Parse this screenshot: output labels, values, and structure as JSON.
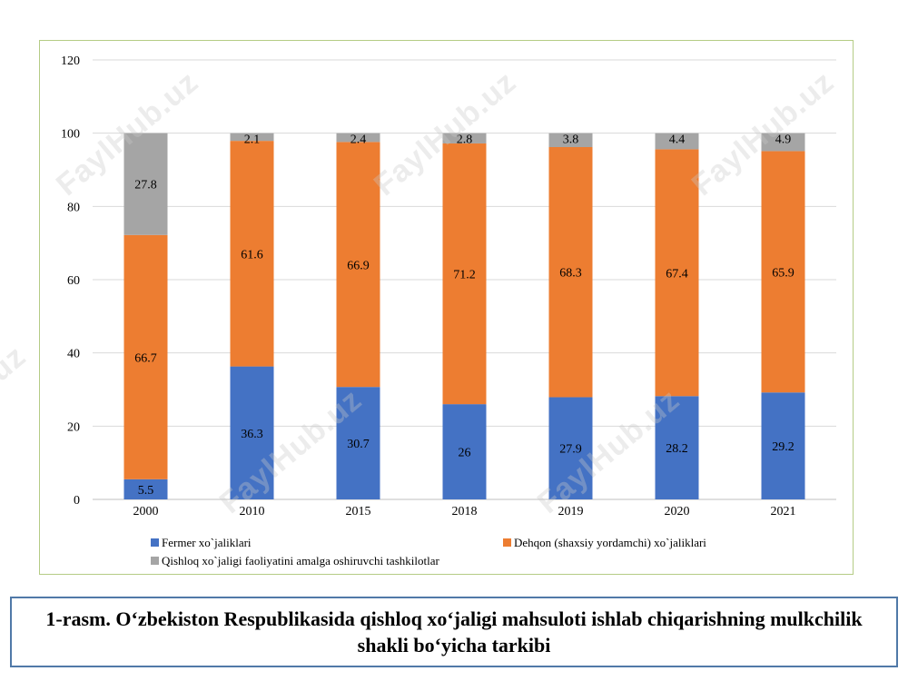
{
  "chart_data": {
    "type": "bar",
    "stacked": true,
    "categories": [
      "2000",
      "2010",
      "2015",
      "2018",
      "2019",
      "2020",
      "2021"
    ],
    "series": [
      {
        "name": "Fermer xo`jaliklari",
        "color": "#4472c4",
        "values": [
          5.5,
          36.3,
          30.7,
          26,
          27.9,
          28.2,
          29.2
        ]
      },
      {
        "name": "Dehqon (shaxsiy yordamchi) xo`jaliklari",
        "color": "#ed7d31",
        "values": [
          66.7,
          61.6,
          66.9,
          71.2,
          68.3,
          67.4,
          65.9
        ]
      },
      {
        "name": "Qishloq xo`jaligi faoliyatini amalga oshiruvchi tashkilotlar",
        "color": "#a5a5a5",
        "values": [
          27.8,
          2.1,
          2.4,
          2.8,
          3.8,
          4.4,
          4.9
        ]
      }
    ],
    "data_labels": [
      [
        "5.5",
        "36.3",
        "30.7",
        "26",
        "27.9",
        "28.2",
        "29.2"
      ],
      [
        "66.7",
        "61.6",
        "66.9",
        "71.2",
        "68.3",
        "67.4",
        "65.9"
      ],
      [
        "27.8",
        "2.1",
        "2.4",
        "2.8",
        "3.8",
        "4.4",
        "4.9"
      ]
    ],
    "yticks": [
      "0",
      "20",
      "40",
      "60",
      "80",
      "100",
      "120"
    ],
    "ylim": [
      0,
      120
    ],
    "grid": true,
    "legend_position": "bottom",
    "frame_color": "#b5cc85"
  },
  "watermark": "FaylHub.uz",
  "caption": "1-rasm. O‘zbekiston Respublikasida qishloq xo‘jaligi mahsuloti ishlab chiqarishning mulkchilik shakli bo‘yicha tarkibi"
}
